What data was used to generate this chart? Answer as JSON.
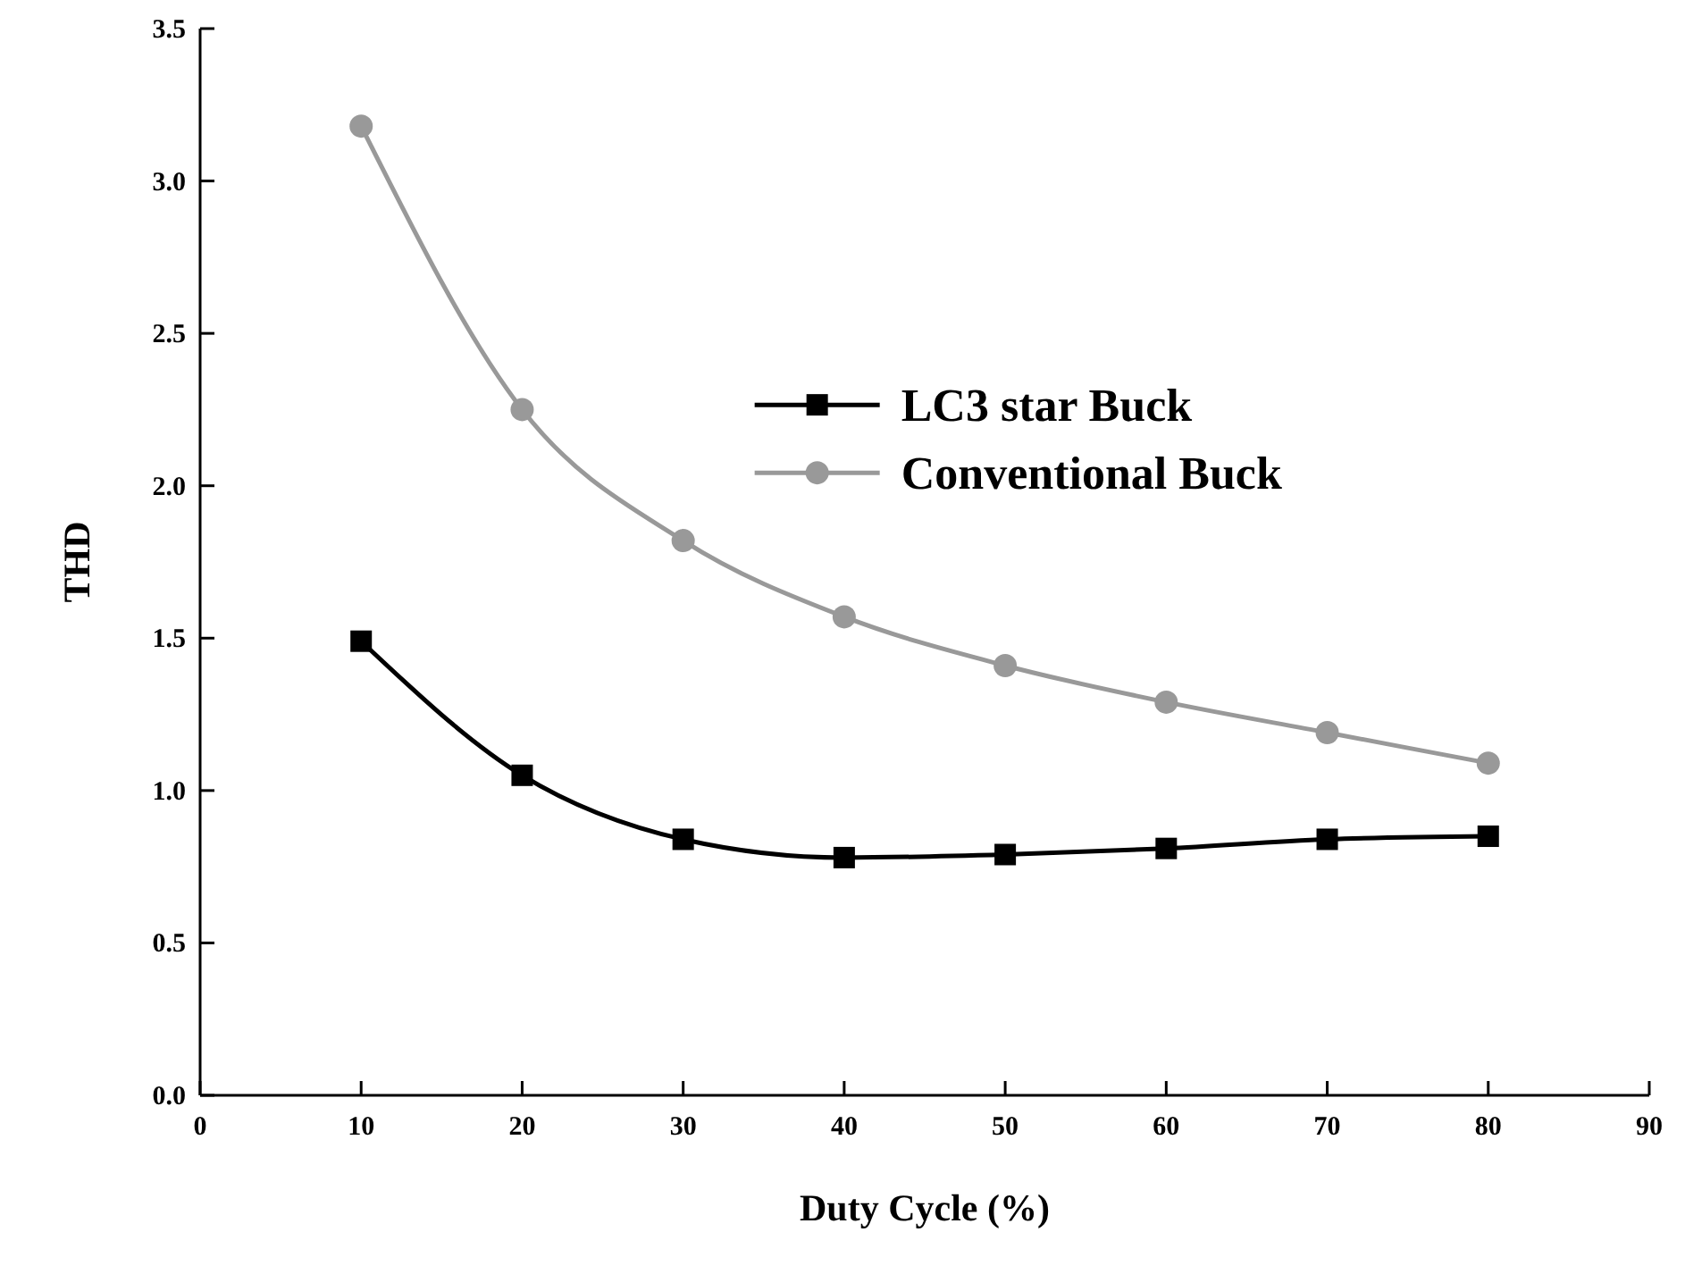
{
  "chart_data": {
    "type": "line",
    "xlabel": "Duty Cycle (%)",
    "ylabel": "THD",
    "x": [
      10,
      20,
      30,
      40,
      50,
      60,
      70,
      80
    ],
    "series": [
      {
        "name": "LC3 star Buck",
        "color": "#000000",
        "marker": "square",
        "values": [
          1.49,
          1.05,
          0.84,
          0.78,
          0.79,
          0.81,
          0.84,
          0.85
        ]
      },
      {
        "name": "Conventional Buck",
        "color": "#999999",
        "marker": "circle",
        "values": [
          3.18,
          2.25,
          1.82,
          1.57,
          1.41,
          1.29,
          1.19,
          1.09
        ]
      }
    ],
    "xlim": [
      0,
      90
    ],
    "xticks": [
      0,
      10,
      20,
      30,
      40,
      50,
      60,
      70,
      80,
      90
    ],
    "ylim": [
      0,
      3.5
    ],
    "yticks": [
      {
        "value": 0,
        "label": "0.0"
      },
      {
        "value": 0.5,
        "label": "0.5"
      },
      {
        "value": 1,
        "label": "1.0"
      },
      {
        "value": 1.5,
        "label": "1.5"
      },
      {
        "value": 2,
        "label": "2.0"
      },
      {
        "value": 2.5,
        "label": "2.5"
      },
      {
        "value": 3,
        "label": "3.0"
      },
      {
        "value": 3.5,
        "label": "3.5"
      }
    ],
    "grid": false,
    "legend": "top right"
  }
}
